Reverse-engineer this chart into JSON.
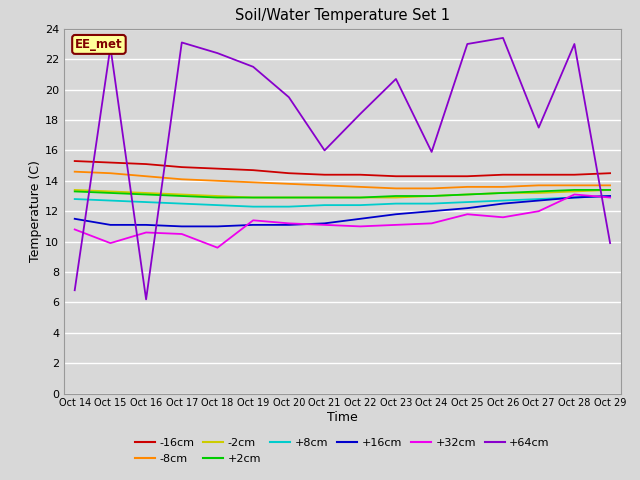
{
  "title": "Soil/Water Temperature Set 1",
  "xlabel": "Time",
  "ylabel": "Temperature (C)",
  "ylim": [
    0,
    24
  ],
  "yticks": [
    0,
    2,
    4,
    6,
    8,
    10,
    12,
    14,
    16,
    18,
    20,
    22,
    24
  ],
  "xtick_labels": [
    "Oct 14",
    "Oct 15",
    "Oct 16",
    "Oct 17",
    "Oct 18",
    "Oct 19",
    "Oct 20",
    "Oct 21",
    "Oct 22",
    "Oct 23",
    "Oct 24",
    "Oct 25",
    "Oct 26",
    "Oct 27",
    "Oct 28",
    "Oct 29"
  ],
  "bg_color": "#d8d8d8",
  "plot_bg_color": "#d8d8d8",
  "grid_color": "#ffffff",
  "annotation_text": "EE_met",
  "annotation_bg": "#ffff99",
  "annotation_border": "#800000",
  "series": {
    "-16cm": {
      "color": "#cc0000",
      "values": [
        15.3,
        15.2,
        15.1,
        14.9,
        14.8,
        14.7,
        14.5,
        14.4,
        14.4,
        14.3,
        14.3,
        14.3,
        14.4,
        14.4,
        14.4,
        14.5
      ]
    },
    "-8cm": {
      "color": "#ff8800",
      "values": [
        14.6,
        14.5,
        14.3,
        14.1,
        14.0,
        13.9,
        13.8,
        13.7,
        13.6,
        13.5,
        13.5,
        13.6,
        13.6,
        13.7,
        13.7,
        13.7
      ]
    },
    "-2cm": {
      "color": "#cccc00",
      "values": [
        13.4,
        13.3,
        13.2,
        13.1,
        13.0,
        12.9,
        12.9,
        12.9,
        12.9,
        12.9,
        13.0,
        13.1,
        13.2,
        13.2,
        13.3,
        13.4
      ]
    },
    "+2cm": {
      "color": "#00cc00",
      "values": [
        13.3,
        13.2,
        13.1,
        13.0,
        12.9,
        12.9,
        12.9,
        12.9,
        12.9,
        13.0,
        13.0,
        13.1,
        13.2,
        13.3,
        13.4,
        13.4
      ]
    },
    "+8cm": {
      "color": "#00cccc",
      "values": [
        12.8,
        12.7,
        12.6,
        12.5,
        12.4,
        12.3,
        12.3,
        12.4,
        12.4,
        12.5,
        12.5,
        12.6,
        12.7,
        12.8,
        12.9,
        13.0
      ]
    },
    "+16cm": {
      "color": "#0000cc",
      "values": [
        11.5,
        11.1,
        11.1,
        11.0,
        11.0,
        11.1,
        11.1,
        11.2,
        11.5,
        11.8,
        12.0,
        12.2,
        12.5,
        12.7,
        12.9,
        13.0
      ]
    },
    "+32cm": {
      "color": "#ee00ee",
      "values": [
        10.8,
        9.9,
        10.6,
        10.5,
        9.6,
        11.4,
        11.2,
        11.1,
        11.0,
        11.1,
        11.2,
        11.8,
        11.6,
        12.0,
        13.1,
        12.9
      ]
    },
    "+64cm": {
      "color": "#8800cc",
      "values": [
        6.8,
        22.8,
        6.2,
        23.1,
        22.4,
        21.5,
        19.5,
        16.0,
        18.4,
        20.7,
        15.9,
        23.0,
        23.4,
        17.5,
        23.0,
        9.9
      ]
    }
  }
}
